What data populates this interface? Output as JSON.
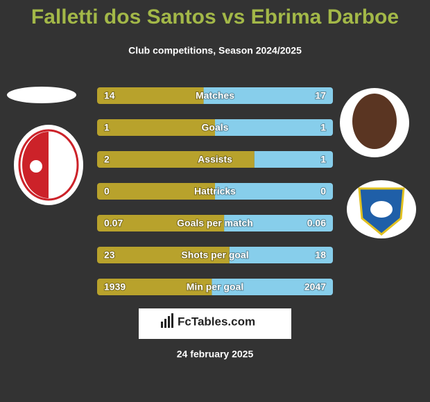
{
  "header": {
    "title": "Falletti dos Santos vs Ebrima Darboe",
    "subtitle": "Club competitions, Season 2024/2025"
  },
  "colors": {
    "left": "#b8a22c",
    "right": "#87ceeb"
  },
  "rows": [
    {
      "label": "Matches",
      "left": 14,
      "right": 17
    },
    {
      "label": "Goals",
      "left": 1,
      "right": 1
    },
    {
      "label": "Assists",
      "left": 2,
      "right": 1
    },
    {
      "label": "Hattricks",
      "left": 0,
      "right": 0
    },
    {
      "label": "Goals per match",
      "left": 0.07,
      "right": 0.06
    },
    {
      "label": "Shots per goal",
      "left": 23,
      "right": 18
    },
    {
      "label": "Min per goal",
      "left": 1939,
      "right": 2047
    }
  ],
  "footer": {
    "brand": "FcTables.com",
    "date": "24 february 2025"
  }
}
